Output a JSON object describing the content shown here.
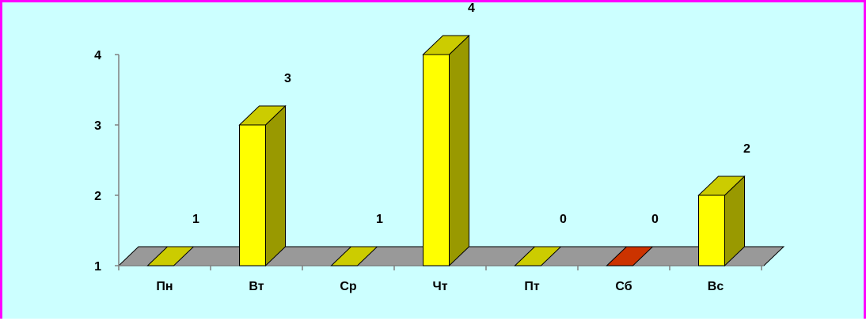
{
  "colors": {
    "border": "#ff00ff",
    "background": "#ccffff",
    "bar_front": "#ffff00",
    "bar_side": "#999900",
    "bar_top": "#cccc00",
    "floor": "#999999",
    "highlight_front": "#cc3300",
    "highlight_top": "#cc3300"
  },
  "chart_data": {
    "type": "bar",
    "categories": [
      "Пн",
      "Вт",
      "Ср",
      "Чт",
      "Пт",
      "Сб",
      "Вс"
    ],
    "values": [
      1,
      3,
      1,
      4,
      0,
      0,
      2
    ],
    "data_labels": [
      "1",
      "3",
      "1",
      "4",
      "0",
      "0",
      "2"
    ],
    "highlight_category": "Сб",
    "y_ticks": [
      "1",
      "2",
      "3",
      "4"
    ],
    "ylim": [
      1,
      4
    ],
    "grid": false,
    "legend": "none",
    "three_d": true
  }
}
